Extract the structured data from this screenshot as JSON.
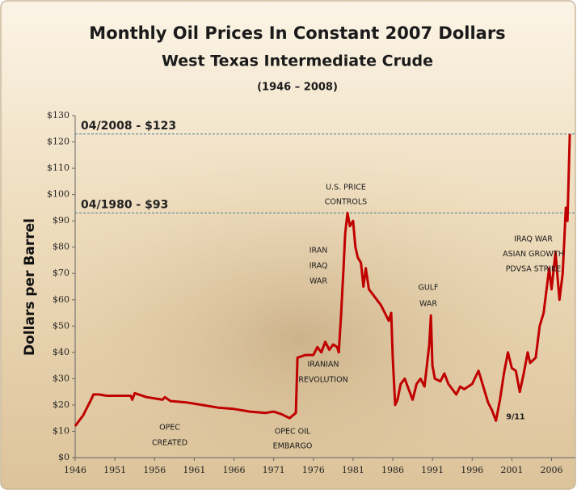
{
  "chart_data": {
    "type": "line",
    "title": "Monthly Oil Prices In Constant 2007 Dollars",
    "subtitle": "West Texas Intermediate Crude",
    "period": "(1946 – 2008)",
    "y_label": "Dollars per Barrel",
    "xlim": [
      1946,
      2009
    ],
    "ylim": [
      0,
      130
    ],
    "xticks": [
      1946,
      1951,
      1956,
      1961,
      1966,
      1971,
      1976,
      1981,
      1986,
      1991,
      1996,
      2001,
      2006
    ],
    "yticks": [
      {
        "value": 0,
        "label": "$0"
      },
      {
        "value": 10,
        "label": "$10"
      },
      {
        "value": 20,
        "label": "$20"
      },
      {
        "value": 30,
        "label": "$30"
      },
      {
        "value": 40,
        "label": "$40"
      },
      {
        "value": 50,
        "label": "$50"
      },
      {
        "value": 60,
        "label": "$60"
      },
      {
        "value": 70,
        "label": "$70"
      },
      {
        "value": 80,
        "label": "$80"
      },
      {
        "value": 90,
        "label": "$90"
      },
      {
        "value": 100,
        "label": "$100"
      },
      {
        "value": 110,
        "label": "$110"
      },
      {
        "value": 120,
        "label": "$120"
      },
      {
        "value": 130,
        "label": "$130"
      }
    ],
    "reference_lines": [
      {
        "value": 123,
        "label": "04/2008 - $123",
        "color": "#4a7f8c"
      },
      {
        "value": 93,
        "label": "04/1980 - $93",
        "color": "#4a7f8c"
      }
    ],
    "annotations": [
      {
        "lines": [
          "U.S. PRICE",
          "CONTROLS"
        ]
      },
      {
        "lines": [
          "IRAN",
          "IRAQ",
          "WAR"
        ]
      },
      {
        "lines": [
          "IRANIAN",
          "REVOLUTION"
        ]
      },
      {
        "lines": [
          "GULF",
          "WAR"
        ]
      },
      {
        "lines": [
          "IRAQ WAR",
          "ASIAN GROWTH",
          "PDVSA STRIKE"
        ]
      },
      {
        "lines": [
          "OPEC",
          "CREATED"
        ]
      },
      {
        "lines": [
          "OPEC OIL",
          "EMBARGO"
        ]
      },
      {
        "lines": [
          "9/11"
        ]
      }
    ],
    "series": [
      {
        "color": "#c00000",
        "x": [
          1946,
          1946.5,
          1947,
          1947.5,
          1948,
          1948.3,
          1949,
          1950,
          1952,
          1953,
          1953.2,
          1953.5,
          1955,
          1957,
          1957.3,
          1958,
          1960,
          1962,
          1964,
          1966,
          1968,
          1970,
          1971,
          1972,
          1973,
          1973.8,
          1974,
          1975,
          1976,
          1976.5,
          1977,
          1977.5,
          1978,
          1978.5,
          1979,
          1979.2,
          1979.5,
          1979.8,
          1980,
          1980.3,
          1980.6,
          1981,
          1981.3,
          1981.6,
          1982,
          1982.3,
          1982.6,
          1983,
          1983.5,
          1984,
          1984.5,
          1985,
          1985.5,
          1985.8,
          1986,
          1986.3,
          1986.6,
          1987,
          1987.5,
          1988,
          1988.5,
          1989,
          1989.5,
          1990,
          1990.6,
          1990.8,
          1991,
          1991.3,
          1992,
          1992.5,
          1993,
          1994,
          1994.5,
          1995,
          1996,
          1996.8,
          1997,
          1998,
          1998.5,
          1999,
          1999.5,
          2000,
          2000.5,
          2001,
          2001.5,
          2002,
          2002.5,
          2003,
          2003.3,
          2004,
          2004.5,
          2005,
          2005.7,
          2006,
          2006.5,
          2007,
          2007.4,
          2007.8,
          2008,
          2008.3
        ],
        "values": [
          12,
          14,
          16,
          19,
          22,
          24,
          24,
          23.5,
          23.5,
          23.5,
          22,
          24.5,
          23,
          22,
          23,
          21.5,
          21,
          20,
          19,
          18.5,
          17.5,
          17,
          17.5,
          16.5,
          15,
          17,
          38,
          39,
          39,
          42,
          40,
          44,
          41,
          43,
          42,
          40,
          55,
          72,
          85,
          93,
          88,
          90,
          80,
          76,
          74,
          65,
          72,
          64,
          62,
          60,
          58,
          55,
          52,
          55,
          38,
          20,
          22,
          28,
          30,
          26,
          22,
          28,
          30,
          27,
          43,
          54,
          35,
          30,
          29,
          32,
          28,
          24,
          27,
          26,
          28,
          33,
          31,
          21,
          18,
          14,
          22,
          32,
          40,
          34,
          33,
          25,
          32,
          40,
          36,
          38,
          50,
          55,
          72,
          64,
          78,
          60,
          70,
          95,
          90,
          123
        ]
      }
    ]
  }
}
